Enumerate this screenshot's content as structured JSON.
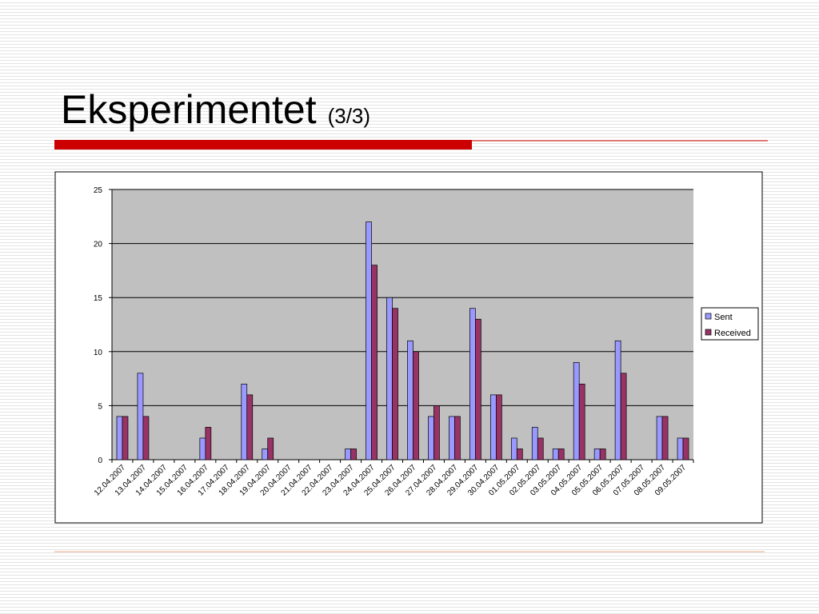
{
  "slide": {
    "title": "Eksperimentet",
    "subtitle": "(3/3)"
  },
  "chart_data": {
    "type": "bar",
    "categories": [
      "12.04.2007",
      "13.04.2007",
      "14.04.2007",
      "15.04.2007",
      "16.04.2007",
      "17.04.2007",
      "18.04.2007",
      "19.04.2007",
      "20.04.2007",
      "21.04.2007",
      "22.04.2007",
      "23.04.2007",
      "24.04.2007",
      "25.04.2007",
      "26.04.2007",
      "27.04.2007",
      "28.04.2007",
      "29.04.2007",
      "30.04.2007",
      "01.05.2007",
      "02.05.2007",
      "03.05.2007",
      "04.05.2007",
      "05.05.2007",
      "06.05.2007",
      "07.05.2007",
      "08.05.2007",
      "09.05.2007"
    ],
    "series": [
      {
        "name": "Sent",
        "color": "#9999ff",
        "values": [
          4,
          8,
          0,
          0,
          2,
          0,
          7,
          1,
          0,
          0,
          0,
          1,
          22,
          15,
          11,
          4,
          4,
          14,
          6,
          2,
          3,
          1,
          9,
          1,
          11,
          0,
          4,
          2
        ]
      },
      {
        "name": "Received",
        "color": "#993366",
        "values": [
          4,
          4,
          0,
          0,
          3,
          0,
          6,
          2,
          0,
          0,
          0,
          1,
          18,
          14,
          10,
          5,
          4,
          13,
          6,
          1,
          2,
          1,
          7,
          1,
          8,
          0,
          4,
          2
        ]
      }
    ],
    "ylim": [
      0,
      25
    ],
    "yticks": [
      0,
      5,
      10,
      15,
      20,
      25
    ],
    "grid": true,
    "legend": "right"
  }
}
